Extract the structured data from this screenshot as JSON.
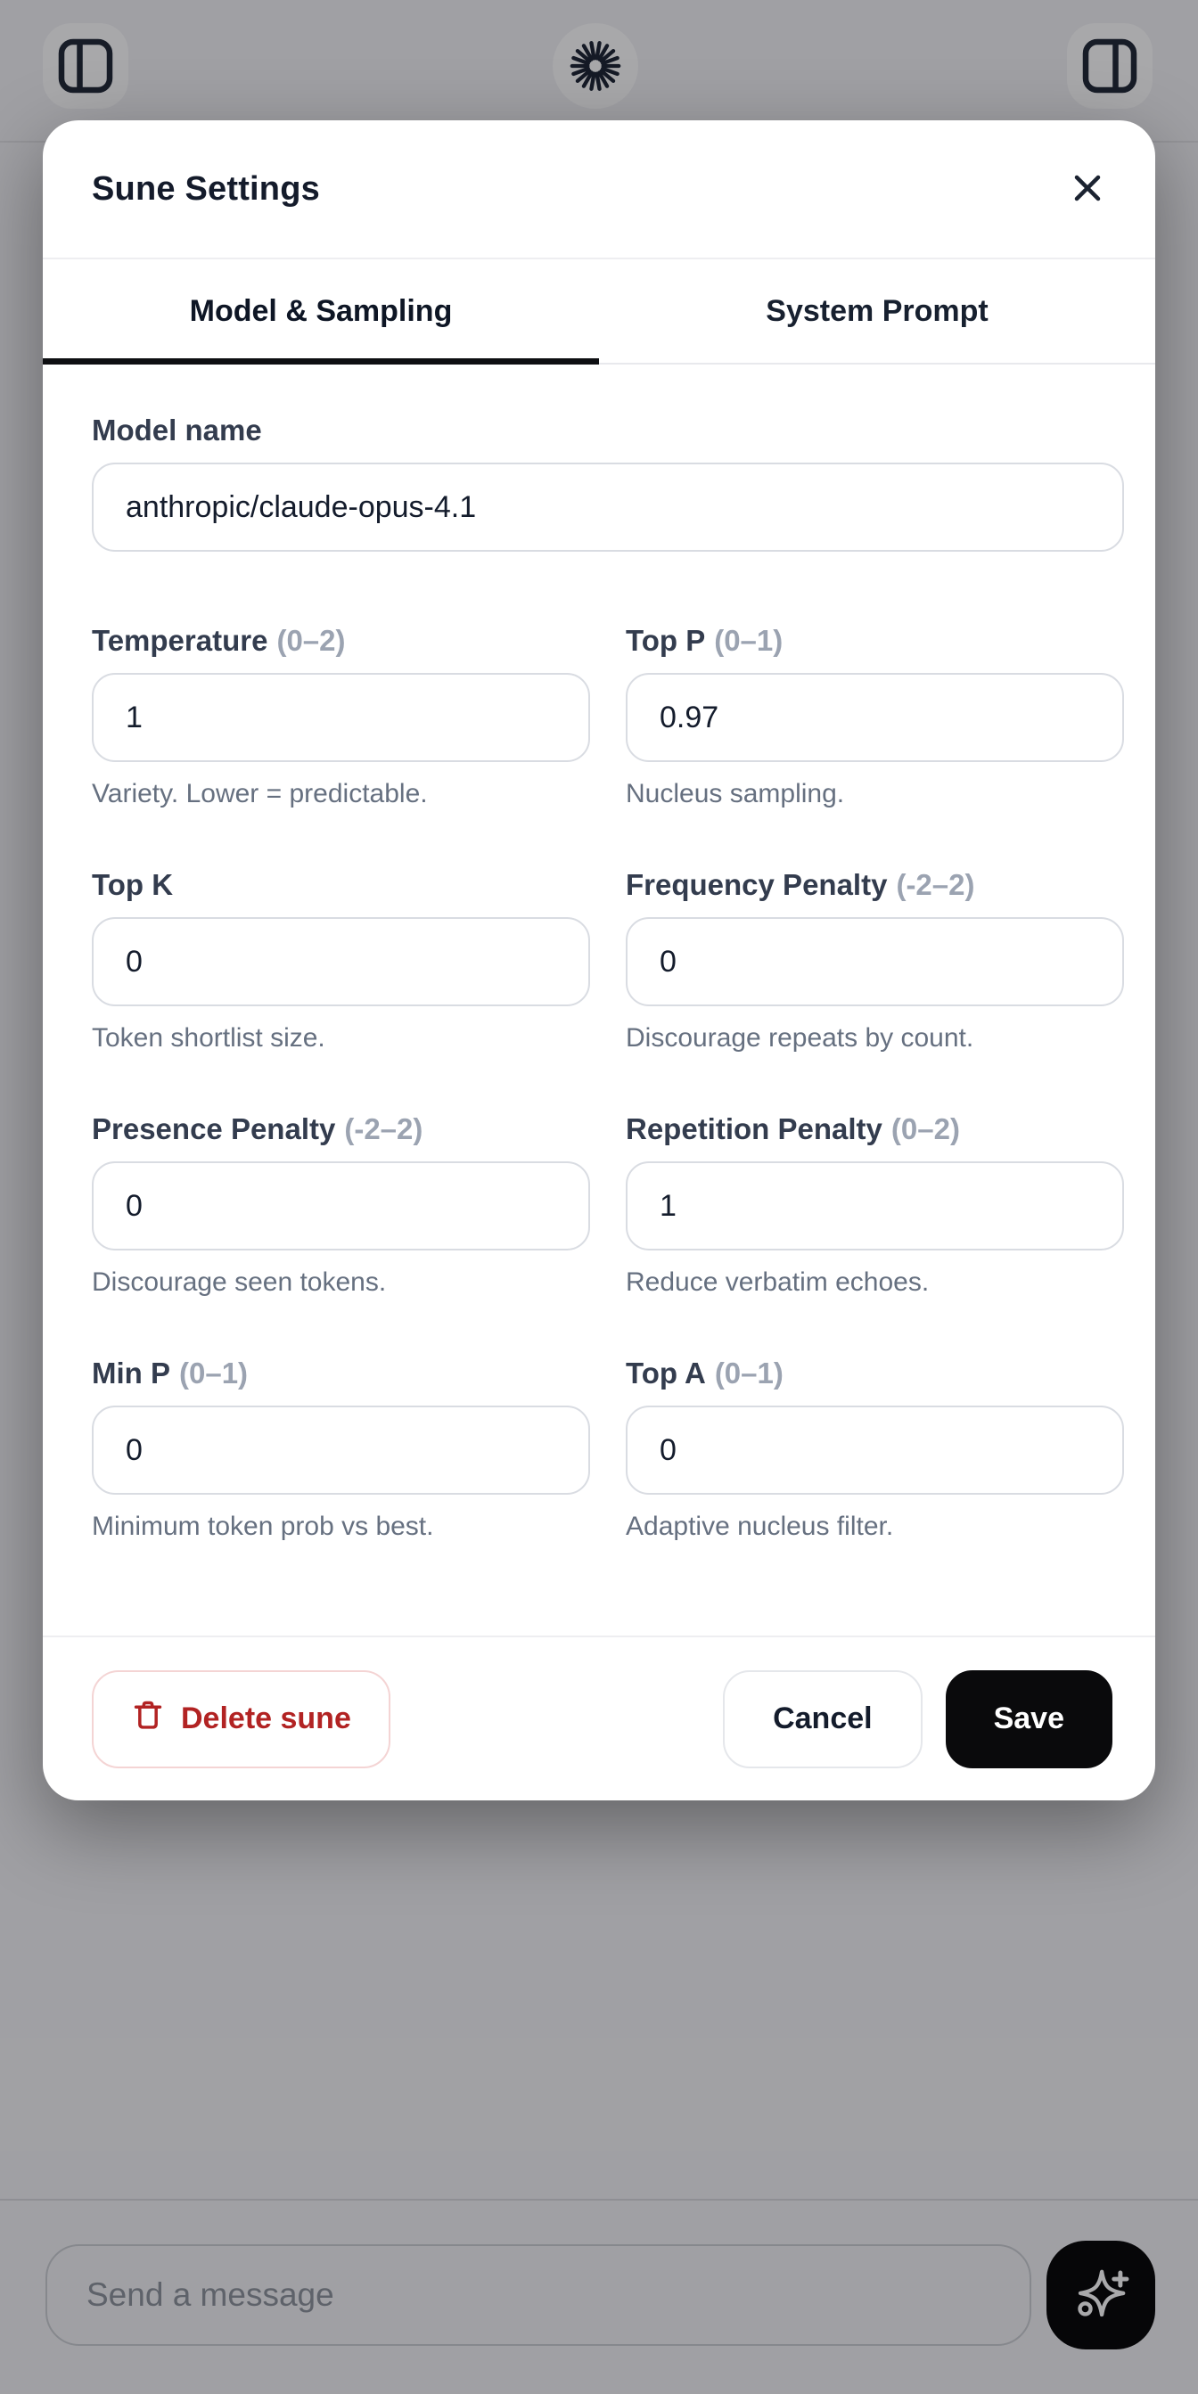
{
  "topbar": {
    "left_icon": "panel-left-icon",
    "center_icon": "burst-icon",
    "right_icon": "panel-right-icon"
  },
  "dialog": {
    "title": "Sune Settings",
    "close_icon": "close-icon",
    "tabs": [
      {
        "label": "Model & Sampling",
        "active": true
      },
      {
        "label": "System Prompt",
        "active": false
      }
    ],
    "model_field": {
      "label": "Model name",
      "value": "anthropic/claude-opus-4.1"
    },
    "fields": [
      {
        "label": "Temperature",
        "range": "(0–2)",
        "value": "1",
        "hint": "Variety. Lower = predictable."
      },
      {
        "label": "Top P",
        "range": "(0–1)",
        "value": "0.97",
        "hint": "Nucleus sampling."
      },
      {
        "label": "Top K",
        "range": "",
        "value": "0",
        "hint": "Token shortlist size."
      },
      {
        "label": "Frequency Penalty",
        "range": "(-2–2)",
        "value": "0",
        "hint": "Discourage repeats by count."
      },
      {
        "label": "Presence Penalty",
        "range": "(-2–2)",
        "value": "0",
        "hint": "Discourage seen tokens."
      },
      {
        "label": "Repetition Penalty",
        "range": "(0–2)",
        "value": "1",
        "hint": "Reduce verbatim echoes."
      },
      {
        "label": "Min P",
        "range": "(0–1)",
        "value": "0",
        "hint": "Minimum token prob vs best."
      },
      {
        "label": "Top A",
        "range": "(0–1)",
        "value": "0",
        "hint": "Adaptive nucleus filter."
      }
    ],
    "footer": {
      "delete_label": "Delete sune",
      "delete_icon": "trash-icon",
      "cancel_label": "Cancel",
      "save_label": "Save"
    }
  },
  "composer": {
    "placeholder": "Send a message",
    "send_icon": "sparkle-plus-icon"
  },
  "colors": {
    "accent_black": "#0a0a0c",
    "danger_red": "#b22323",
    "danger_border": "#f4d4d4",
    "label_dark": "#333c4e",
    "range_gray": "#9ba3b1",
    "hint_gray": "#667080",
    "input_border": "#d9dce2",
    "scrim": "rgba(10,10,14,0.35)"
  }
}
